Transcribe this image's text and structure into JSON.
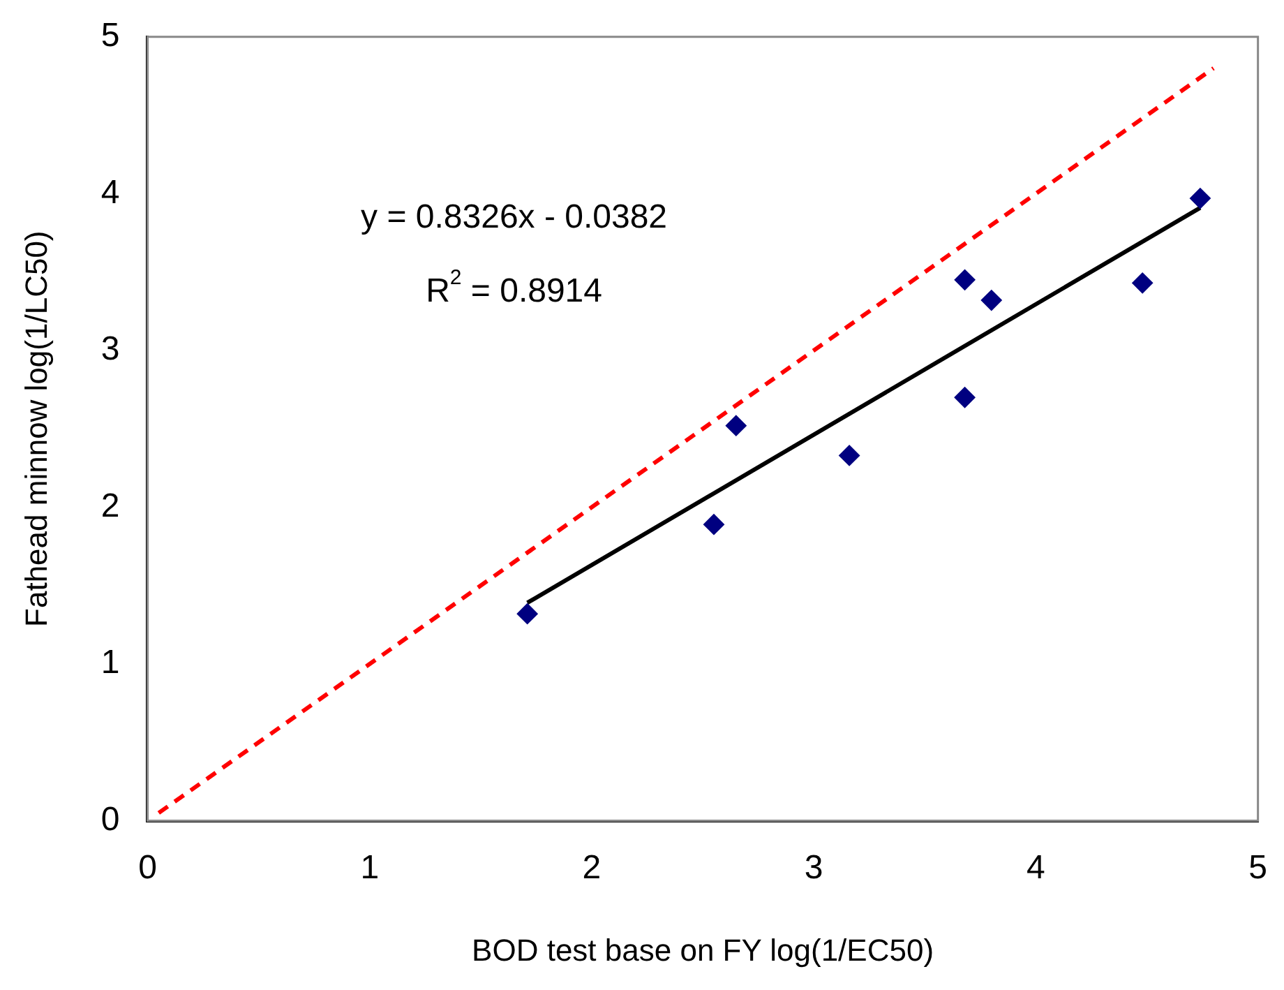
{
  "chart_data": {
    "type": "scatter",
    "xlabel": "BOD test base on FY log(1/EC50)",
    "ylabel": "Fathead minnow log(1/LC50)",
    "xlim": [
      0,
      5
    ],
    "ylim": [
      0,
      5
    ],
    "xticks": [
      0,
      1,
      2,
      3,
      4,
      5
    ],
    "yticks": [
      0,
      1,
      2,
      3,
      4,
      5
    ],
    "grid": false,
    "legend": false,
    "annotations": [
      "y = 0.8326x - 0.0382",
      "R$^{2}$ = 0.8914"
    ],
    "series": [
      {
        "marker": "diamond",
        "color": "#000080",
        "x": [
          1.71,
          2.55,
          2.65,
          3.16,
          3.68,
          3.68,
          3.8,
          4.48,
          4.74
        ],
        "values": [
          1.32,
          1.89,
          2.52,
          2.33,
          3.45,
          2.7,
          3.32,
          3.43,
          3.97
        ]
      },
      {
        "type": "line",
        "color": "#000000",
        "line_style": "solid",
        "x": [
          1.71,
          4.74
        ],
        "values": [
          1.39,
          3.91
        ]
      },
      {
        "type": "line",
        "color": "#ff0000",
        "line_style": "dashed",
        "x": [
          0.05,
          4.8
        ],
        "values": [
          0.05,
          4.8
        ]
      }
    ]
  }
}
